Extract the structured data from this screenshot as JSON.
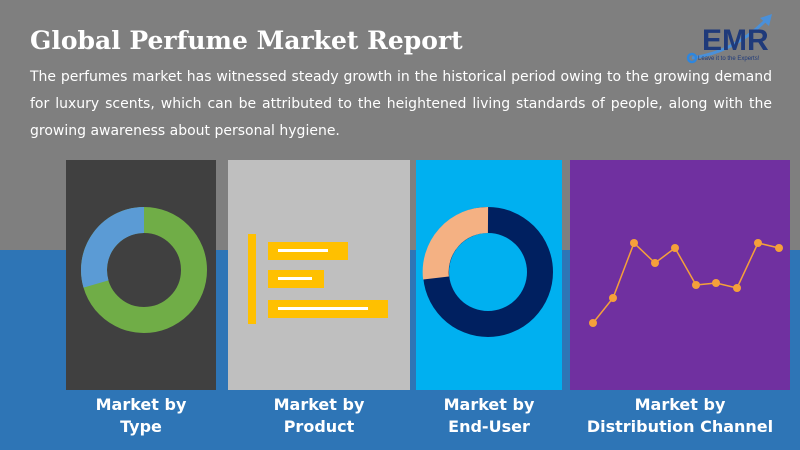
{
  "header": {
    "title": "Global Perfume Market Report",
    "description": "The perfumes market has witnessed steady growth in the historical period owing to the growing demand for luxury scents, which can be attributed to the heightened living standards of people, along with the growing awareness about personal hygiene."
  },
  "logo": {
    "text": "EMR",
    "tagline": "Leave it to the Experts!"
  },
  "colors": {
    "top_bg": "#7f7f7f",
    "bottom_bg": "#2e75b6",
    "panel_type": "#404040",
    "panel_product": "#bfbfbf",
    "panel_enduser": "#00b0f0",
    "panel_distribution": "#7030a0",
    "accent_orange": "#f5a03a"
  },
  "cards": [
    {
      "line1": "Market by",
      "line2": "Type",
      "icon": "donut-chart-icon"
    },
    {
      "line1": "Market by",
      "line2": "Product",
      "icon": "bar-chart-icon"
    },
    {
      "line1": "Market by",
      "line2": "End-User",
      "icon": "donut-chart-icon"
    },
    {
      "line1": "Market by",
      "line2": "Distribution Channel",
      "icon": "line-chart-icon"
    }
  ]
}
